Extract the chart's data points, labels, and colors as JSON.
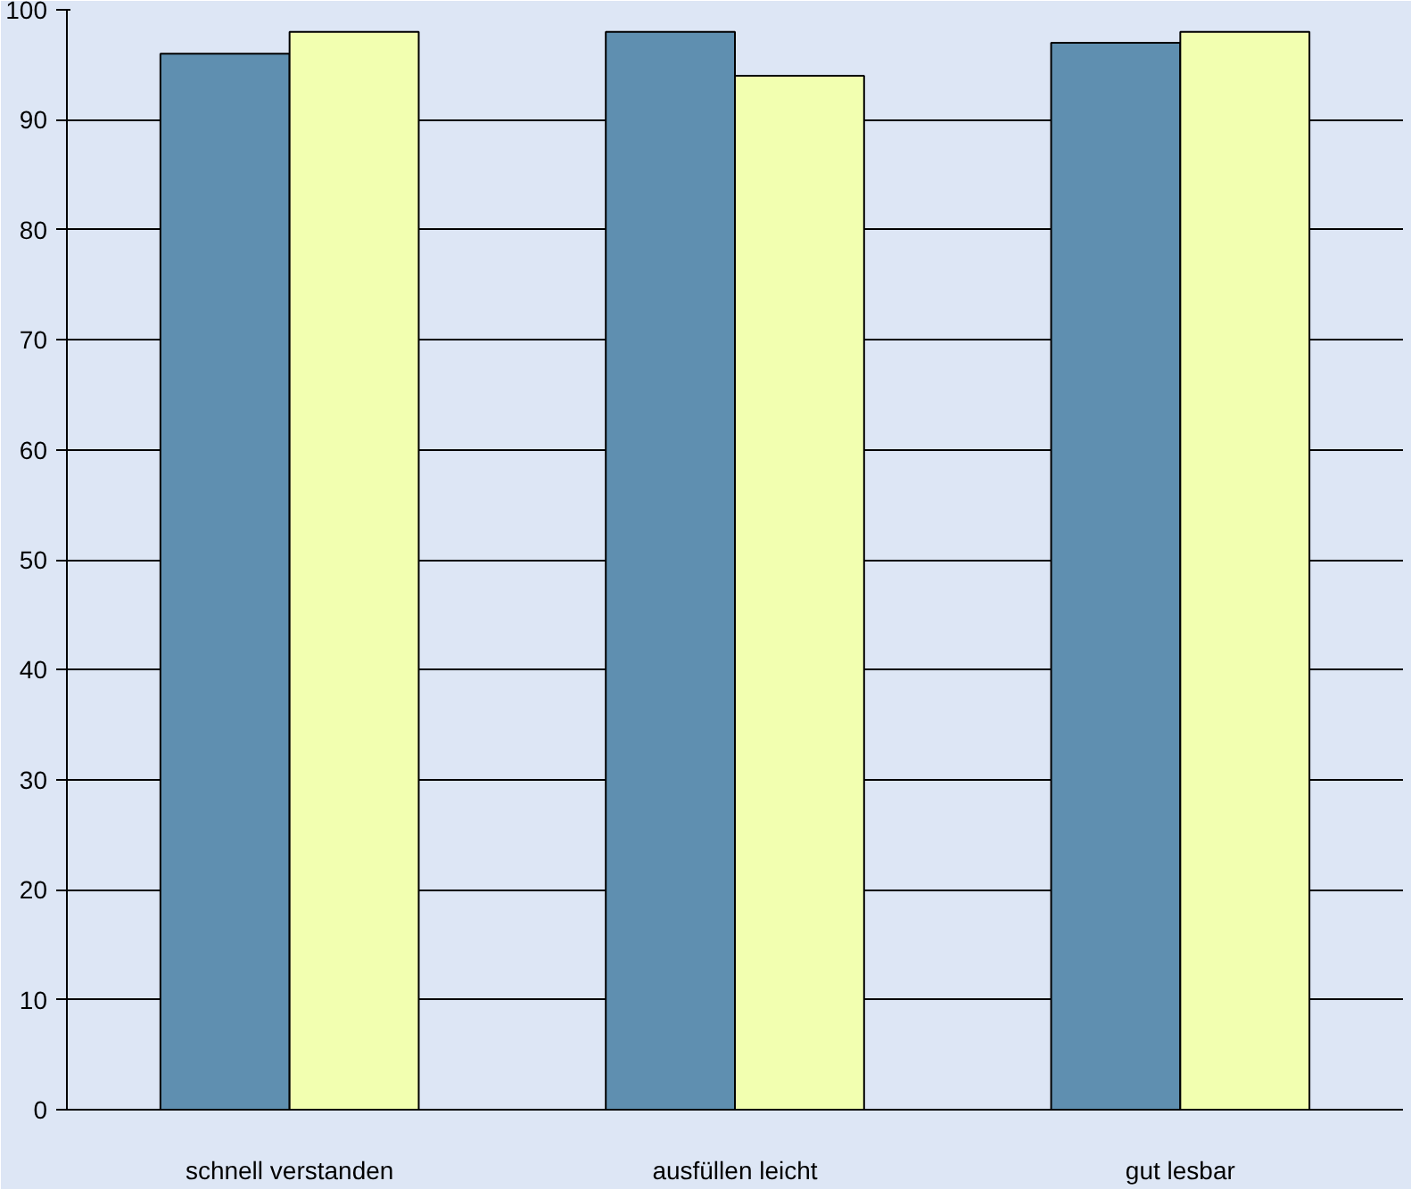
{
  "chart_data": {
    "type": "bar",
    "categories": [
      "schnell verstanden",
      "ausfüllen leicht",
      "gut lesbar"
    ],
    "series": [
      {
        "color": "#5f8fb0",
        "values": [
          96,
          98,
          97
        ]
      },
      {
        "color": "#f2ffb0",
        "values": [
          98,
          94,
          98
        ]
      }
    ],
    "ylim": [
      0,
      100
    ],
    "yticks": [
      0,
      10,
      20,
      30,
      40,
      50,
      60,
      70,
      80,
      90,
      100
    ],
    "grid": "y"
  }
}
